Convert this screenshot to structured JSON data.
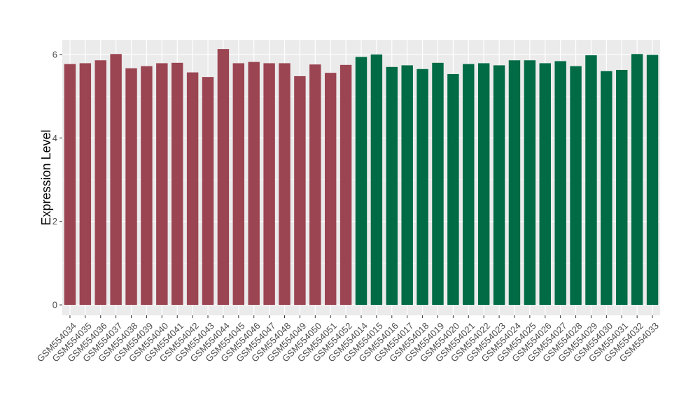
{
  "chart_data": {
    "type": "bar",
    "title": "",
    "xlabel": "",
    "ylabel": "Expression Level",
    "ylim": [
      -0.25,
      6.35
    ],
    "yticks": [
      0,
      2,
      4,
      6
    ],
    "grid": true,
    "legend": "none",
    "colors": {
      "group1": "#9b4452",
      "group2": "#006b45",
      "panel": "#ebebeb",
      "grid": "#ffffff"
    },
    "categories": [
      "GSM554034",
      "GSM554035",
      "GSM554036",
      "GSM554037",
      "GSM554038",
      "GSM554039",
      "GSM554040",
      "GSM554041",
      "GSM554042",
      "GSM554043",
      "GSM554044",
      "GSM554045",
      "GSM554046",
      "GSM554047",
      "GSM554048",
      "GSM554049",
      "GSM554050",
      "GSM554051",
      "GSM554052",
      "GSM554014",
      "GSM554015",
      "GSM554016",
      "GSM554017",
      "GSM554018",
      "GSM554019",
      "GSM554020",
      "GSM554021",
      "GSM554022",
      "GSM554023",
      "GSM554024",
      "GSM554025",
      "GSM554026",
      "GSM554027",
      "GSM554028",
      "GSM554029",
      "GSM554030",
      "GSM554031",
      "GSM554032",
      "GSM554033"
    ],
    "values": [
      5.77,
      5.79,
      5.86,
      6.01,
      5.67,
      5.72,
      5.79,
      5.8,
      5.57,
      5.46,
      6.13,
      5.79,
      5.82,
      5.79,
      5.79,
      5.48,
      5.76,
      5.56,
      5.75,
      5.94,
      6.0,
      5.7,
      5.74,
      5.65,
      5.8,
      5.53,
      5.77,
      5.79,
      5.74,
      5.86,
      5.86,
      5.79,
      5.84,
      5.72,
      5.98,
      5.6,
      5.63,
      6.01,
      5.99
    ],
    "groups": [
      1,
      1,
      1,
      1,
      1,
      1,
      1,
      1,
      1,
      1,
      1,
      1,
      1,
      1,
      1,
      1,
      1,
      1,
      1,
      2,
      2,
      2,
      2,
      2,
      2,
      2,
      2,
      2,
      2,
      2,
      2,
      2,
      2,
      2,
      2,
      2,
      2,
      2,
      2
    ]
  }
}
